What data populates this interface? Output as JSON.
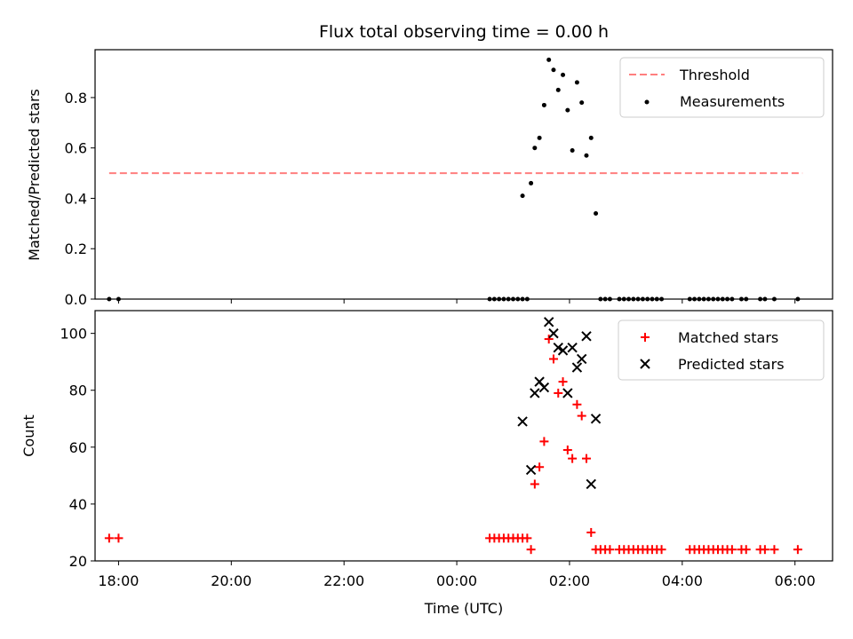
{
  "figure": {
    "title": "Flux total observing time = 0.00 h"
  },
  "chart_data": [
    {
      "type": "scatter",
      "panel": "top",
      "title": "Flux total observing time = 0.00 h",
      "xlabel": "",
      "ylabel": "Matched/Predicted stars",
      "xlim": [
        "17:35",
        "06:40"
      ],
      "ylim": [
        0.0,
        0.99
      ],
      "x_ticks": [
        "18:00",
        "20:00",
        "22:00",
        "00:00",
        "02:00",
        "04:00",
        "06:00"
      ],
      "y_ticks": [
        0.0,
        0.2,
        0.4,
        0.6,
        0.8
      ],
      "y_tick_labels": [
        "0.0",
        "0.2",
        "0.4",
        "0.6",
        "0.8"
      ],
      "grid": false,
      "legend_position": "top-right",
      "legend": [
        "Threshold",
        "Measurements"
      ],
      "series": [
        {
          "name": "Threshold",
          "kind": "line",
          "style": "dashed",
          "color": "#ff7f7f",
          "x": [
            "17:50",
            "06:08"
          ],
          "y": [
            0.5,
            0.5
          ]
        },
        {
          "name": "Measurements",
          "kind": "scatter",
          "marker": "dot",
          "color": "#000000",
          "points": [
            [
              "17:50",
              0.0
            ],
            [
              "18:00",
              0.0
            ],
            [
              "00:35",
              0.0
            ],
            [
              "00:40",
              0.0
            ],
            [
              "00:45",
              0.0
            ],
            [
              "00:50",
              0.0
            ],
            [
              "00:55",
              0.0
            ],
            [
              "01:00",
              0.0
            ],
            [
              "01:05",
              0.0
            ],
            [
              "01:10",
              0.0
            ],
            [
              "01:15",
              0.0
            ],
            [
              "01:10",
              0.41
            ],
            [
              "01:19",
              0.46
            ],
            [
              "01:23",
              0.6
            ],
            [
              "01:28",
              0.64
            ],
            [
              "01:33",
              0.77
            ],
            [
              "01:38",
              0.95
            ],
            [
              "01:43",
              0.91
            ],
            [
              "01:48",
              0.83
            ],
            [
              "01:53",
              0.89
            ],
            [
              "01:58",
              0.75
            ],
            [
              "02:03",
              0.59
            ],
            [
              "02:08",
              0.86
            ],
            [
              "02:13",
              0.78
            ],
            [
              "02:18",
              0.57
            ],
            [
              "02:23",
              0.64
            ],
            [
              "02:28",
              0.34
            ],
            [
              "02:33",
              0.0
            ],
            [
              "02:38",
              0.0
            ],
            [
              "02:43",
              0.0
            ],
            [
              "02:53",
              0.0
            ],
            [
              "02:58",
              0.0
            ],
            [
              "03:03",
              0.0
            ],
            [
              "03:08",
              0.0
            ],
            [
              "03:13",
              0.0
            ],
            [
              "03:18",
              0.0
            ],
            [
              "03:23",
              0.0
            ],
            [
              "03:28",
              0.0
            ],
            [
              "03:33",
              0.0
            ],
            [
              "03:38",
              0.0
            ],
            [
              "04:08",
              0.0
            ],
            [
              "04:13",
              0.0
            ],
            [
              "04:18",
              0.0
            ],
            [
              "04:23",
              0.0
            ],
            [
              "04:28",
              0.0
            ],
            [
              "04:33",
              0.0
            ],
            [
              "04:38",
              0.0
            ],
            [
              "04:43",
              0.0
            ],
            [
              "04:48",
              0.0
            ],
            [
              "04:53",
              0.0
            ],
            [
              "05:03",
              0.0
            ],
            [
              "05:08",
              0.0
            ],
            [
              "05:23",
              0.0
            ],
            [
              "05:28",
              0.0
            ],
            [
              "05:38",
              0.0
            ],
            [
              "06:03",
              0.0
            ]
          ]
        }
      ]
    },
    {
      "type": "scatter",
      "panel": "bottom",
      "title": "",
      "xlabel": "Time (UTC)",
      "ylabel": "Count",
      "xlim": [
        "17:35",
        "06:40"
      ],
      "ylim": [
        20,
        108
      ],
      "x_ticks": [
        "18:00",
        "20:00",
        "22:00",
        "00:00",
        "02:00",
        "04:00",
        "06:00"
      ],
      "y_ticks": [
        20,
        40,
        60,
        80,
        100
      ],
      "y_tick_labels": [
        "20",
        "40",
        "60",
        "80",
        "100"
      ],
      "grid": false,
      "legend_position": "top-right",
      "legend": [
        "Matched stars",
        "Predicted stars"
      ],
      "series": [
        {
          "name": "Matched stars",
          "marker": "plus",
          "color": "#ff0000",
          "points": [
            [
              "17:50",
              28
            ],
            [
              "18:00",
              28
            ],
            [
              "00:35",
              28
            ],
            [
              "00:40",
              28
            ],
            [
              "00:45",
              28
            ],
            [
              "00:50",
              28
            ],
            [
              "00:55",
              28
            ],
            [
              "01:00",
              28
            ],
            [
              "01:05",
              28
            ],
            [
              "01:10",
              28
            ],
            [
              "01:15",
              28
            ],
            [
              "01:19",
              24
            ],
            [
              "01:23",
              47
            ],
            [
              "01:28",
              53
            ],
            [
              "01:33",
              62
            ],
            [
              "01:38",
              98
            ],
            [
              "01:43",
              91
            ],
            [
              "01:48",
              79
            ],
            [
              "01:53",
              83
            ],
            [
              "01:58",
              59
            ],
            [
              "02:03",
              56
            ],
            [
              "02:08",
              75
            ],
            [
              "02:13",
              71
            ],
            [
              "02:18",
              56
            ],
            [
              "02:23",
              30
            ],
            [
              "02:28",
              24
            ],
            [
              "02:33",
              24
            ],
            [
              "02:38",
              24
            ],
            [
              "02:43",
              24
            ],
            [
              "02:53",
              24
            ],
            [
              "02:58",
              24
            ],
            [
              "03:03",
              24
            ],
            [
              "03:08",
              24
            ],
            [
              "03:13",
              24
            ],
            [
              "03:18",
              24
            ],
            [
              "03:23",
              24
            ],
            [
              "03:28",
              24
            ],
            [
              "03:33",
              24
            ],
            [
              "03:38",
              24
            ],
            [
              "04:08",
              24
            ],
            [
              "04:13",
              24
            ],
            [
              "04:18",
              24
            ],
            [
              "04:23",
              24
            ],
            [
              "04:28",
              24
            ],
            [
              "04:33",
              24
            ],
            [
              "04:38",
              24
            ],
            [
              "04:43",
              24
            ],
            [
              "04:48",
              24
            ],
            [
              "04:53",
              24
            ],
            [
              "05:03",
              24
            ],
            [
              "05:08",
              24
            ],
            [
              "05:23",
              24
            ],
            [
              "05:28",
              24
            ],
            [
              "05:38",
              24
            ],
            [
              "06:03",
              24
            ]
          ]
        },
        {
          "name": "Predicted stars",
          "marker": "x",
          "color": "#000000",
          "points": [
            [
              "01:10",
              69
            ],
            [
              "01:19",
              52
            ],
            [
              "01:23",
              79
            ],
            [
              "01:28",
              83
            ],
            [
              "01:33",
              81
            ],
            [
              "01:38",
              104
            ],
            [
              "01:43",
              100
            ],
            [
              "01:48",
              95
            ],
            [
              "01:53",
              94
            ],
            [
              "01:58",
              79
            ],
            [
              "02:03",
              95
            ],
            [
              "02:08",
              88
            ],
            [
              "02:13",
              91
            ],
            [
              "02:18",
              99
            ],
            [
              "02:23",
              47
            ],
            [
              "02:28",
              70
            ]
          ]
        }
      ]
    }
  ]
}
